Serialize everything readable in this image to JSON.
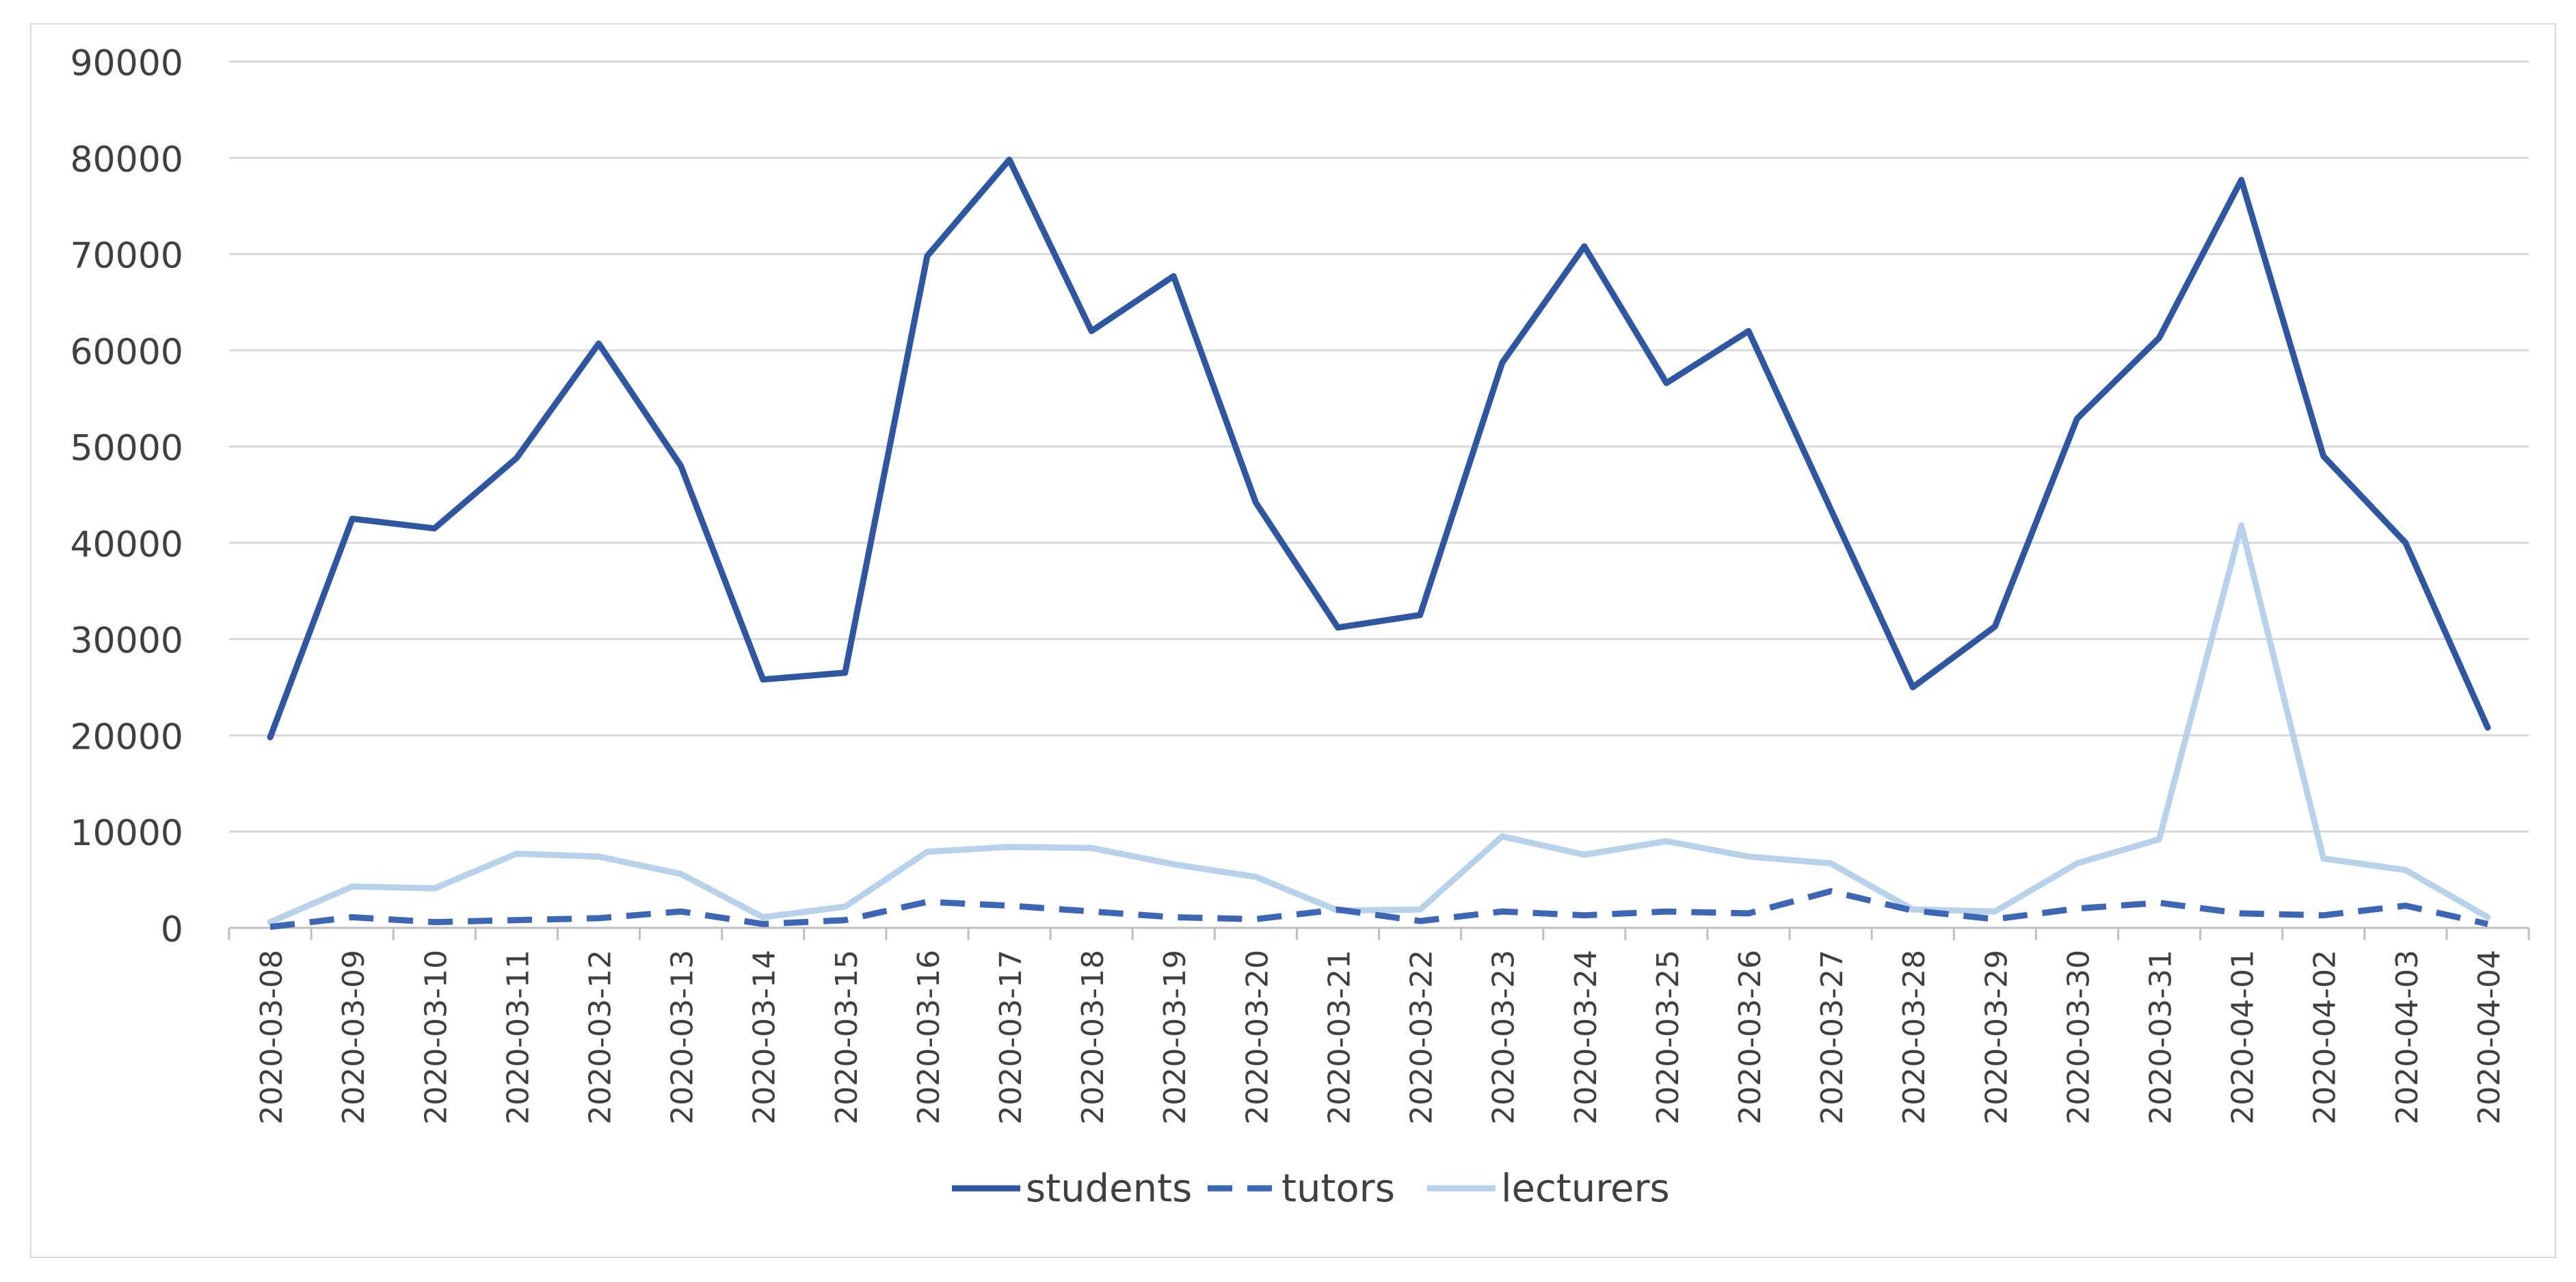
{
  "chart_data": {
    "type": "line",
    "title": "",
    "xlabel": "",
    "ylabel": "",
    "ylim": [
      0,
      90000
    ],
    "y_ticks": [
      0,
      10000,
      20000,
      30000,
      40000,
      50000,
      60000,
      70000,
      80000,
      90000
    ],
    "grid": true,
    "legend": "bottom-center",
    "categories": [
      "2020-03-08",
      "2020-03-09",
      "2020-03-10",
      "2020-03-11",
      "2020-03-12",
      "2020-03-13",
      "2020-03-14",
      "2020-03-15",
      "2020-03-16",
      "2020-03-17",
      "2020-03-18",
      "2020-03-19",
      "2020-03-20",
      "2020-03-21",
      "2020-03-22",
      "2020-03-23",
      "2020-03-24",
      "2020-03-25",
      "2020-03-26",
      "2020-03-27",
      "2020-03-28",
      "2020-03-29",
      "2020-03-30",
      "2020-03-31",
      "2020-04-01",
      "2020-04-02",
      "2020-04-03",
      "2020-04-04"
    ],
    "series": [
      {
        "name": "students",
        "color": "#2f56a0",
        "dash": "solid",
        "values": [
          19800,
          42500,
          41500,
          48800,
          60700,
          48000,
          25800,
          26500,
          69800,
          79800,
          62000,
          67700,
          44200,
          31200,
          32500,
          58700,
          70800,
          56600,
          62000,
          43500,
          25000,
          31300,
          52900,
          61300,
          77700,
          49000,
          40000,
          20800
        ]
      },
      {
        "name": "tutors",
        "color": "#3d66b7",
        "dash": "dashed",
        "values": [
          100,
          1100,
          600,
          800,
          1000,
          1700,
          400,
          800,
          2700,
          2300,
          1700,
          1100,
          900,
          1900,
          700,
          1700,
          1300,
          1700,
          1500,
          3800,
          1800,
          900,
          2000,
          2600,
          1500,
          1300,
          2300,
          400
        ]
      },
      {
        "name": "lecturers",
        "color": "#b9d2ec",
        "dash": "solid",
        "values": [
          600,
          4300,
          4100,
          7700,
          7400,
          5600,
          1100,
          2200,
          7900,
          8400,
          8300,
          6600,
          5300,
          1800,
          1900,
          9500,
          7600,
          9000,
          7400,
          6700,
          1900,
          1700,
          6700,
          9200,
          41800,
          7200,
          6000,
          1100
        ]
      }
    ]
  }
}
